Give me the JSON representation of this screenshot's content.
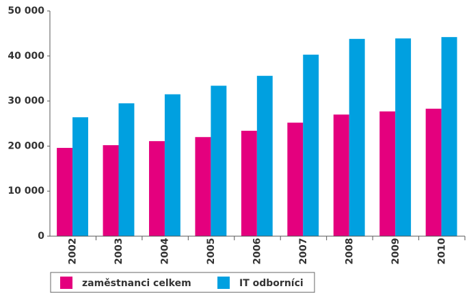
{
  "chart_data": {
    "type": "bar",
    "categories": [
      "2002",
      "2003",
      "2004",
      "2005",
      "2006",
      "2007",
      "2008",
      "2009",
      "2010"
    ],
    "series": [
      {
        "name": "zaměstnanci celkem",
        "color": "#e4007e",
        "values": [
          19600,
          20200,
          21100,
          22000,
          23400,
          25200,
          27000,
          27700,
          28300
        ]
      },
      {
        "name": "IT odborníci",
        "color": "#00a0e0",
        "values": [
          26400,
          29500,
          31500,
          33400,
          35600,
          40300,
          43800,
          43900,
          44200
        ]
      }
    ],
    "ylim": [
      0,
      50000
    ],
    "yticks": [
      0,
      {
        "value": 10000,
        "label": "10 000"
      },
      {
        "value": 20000,
        "label": "20 000"
      },
      {
        "value": 30000,
        "label": "30 000"
      },
      {
        "value": 40000,
        "label": "40 000"
      },
      {
        "value": 50000,
        "label": "50 000"
      }
    ],
    "grid": false
  }
}
